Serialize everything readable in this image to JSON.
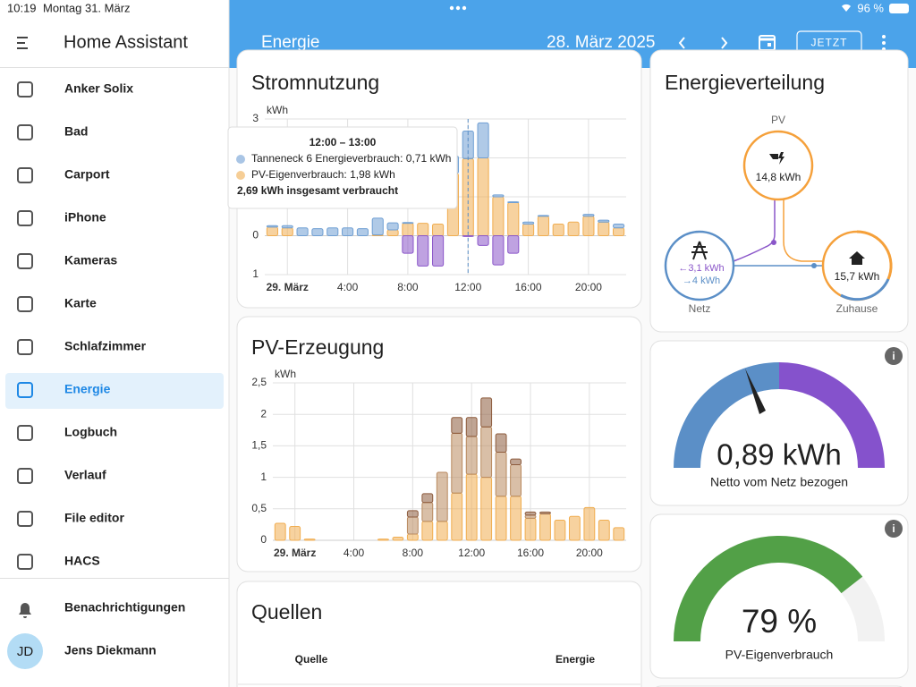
{
  "status_bar": {
    "time": "10:19",
    "date": "Montag 31. März",
    "battery": "96 %"
  },
  "sidebar": {
    "title": "Home Assistant",
    "items": [
      "Anker Solix",
      "Bad",
      "Carport",
      "iPhone",
      "Kameras",
      "Karte",
      "Schlafzimmer",
      "Energie",
      "Logbuch",
      "Verlauf",
      "File editor",
      "HACS"
    ],
    "notifications": "Benachrichtigungen",
    "user_initials": "JD",
    "user_name": "Jens Diekmann"
  },
  "header": {
    "title": "Energie",
    "date": "28. März 2025",
    "button": "JETZT"
  },
  "chart_data": [
    {
      "type": "bar",
      "stacked": true,
      "grid": true,
      "title": "Stromnutzung",
      "ylabel": "kWh",
      "categories": [
        null,
        "29. März",
        null,
        null,
        null,
        "4:00",
        null,
        null,
        null,
        "8:00",
        null,
        null,
        null,
        "12:00",
        null,
        null,
        null,
        "16:00",
        null,
        null,
        null,
        "20:00",
        null,
        null
      ],
      "ylim": [
        -1,
        3
      ],
      "yticks": [
        {
          "value": -1,
          "label": "1"
        },
        0,
        1,
        2,
        3
      ],
      "series": [
        {
          "color": "#f0ad50",
          "values": [
            0.22,
            0.2,
            0,
            0,
            0,
            0,
            0,
            0.02,
            0.15,
            0.32,
            0.32,
            0.3,
            1.6,
            1.98,
            2.0,
            1.0,
            0.85,
            0.3,
            0.5,
            0.3,
            0.35,
            0.5,
            0.35,
            0.2
          ]
        },
        {
          "color": "#6f9fd3",
          "values": [
            0.04,
            0.06,
            0.2,
            0.18,
            0.2,
            0.2,
            0.18,
            0.43,
            0.18,
            0.02,
            0,
            0,
            0.45,
            0.71,
            0.9,
            0.05,
            0.02,
            0.05,
            0.02,
            0,
            0,
            0.05,
            0.05,
            0.1
          ]
        },
        {
          "color": "#8a56c9",
          "values": [
            0,
            0,
            0,
            0,
            0,
            0,
            0,
            0,
            0,
            -0.45,
            -0.78,
            -0.78,
            0,
            -0.02,
            -0.25,
            -0.75,
            -0.45,
            0,
            0,
            0,
            0,
            0,
            0,
            0
          ]
        }
      ],
      "tooltip": {
        "title": "12:00 – 13:00",
        "lines": [
          "Tanneneck 6 Energieverbrauch: 0,71 kWh",
          "PV-Eigenverbrauch: 1,98 kWh"
        ],
        "total": "2,69 kWh insgesamt verbraucht"
      }
    },
    {
      "type": "bar",
      "stacked": true,
      "grid": true,
      "title": "PV-Erzeugung",
      "ylabel": "kWh",
      "categories": [
        null,
        "29. März",
        null,
        null,
        null,
        "4:00",
        null,
        null,
        null,
        "8:00",
        null,
        null,
        null,
        "12:00",
        null,
        null,
        null,
        "16:00",
        null,
        null,
        null,
        "20:00",
        null,
        null
      ],
      "ylim": [
        0,
        2.5
      ],
      "yticks": [
        0,
        {
          "value": 0.5,
          "label": "0,5"
        },
        1,
        {
          "value": 1.5,
          "label": "1,5"
        },
        2,
        {
          "value": 2.5,
          "label": "2,5"
        }
      ],
      "series": [
        {
          "color": "#f0ad50",
          "values": [
            0.27,
            0.22,
            0.02,
            0,
            0,
            0,
            0,
            0.02,
            0.05,
            0.1,
            0.3,
            0.3,
            0.75,
            1.05,
            1.0,
            0.7,
            0.7,
            0.35,
            0.42,
            0.32,
            0.38,
            0.52,
            0.32,
            0.2
          ]
        },
        {
          "color": "#b98a5f",
          "values": [
            0,
            0,
            0,
            0,
            0,
            0,
            0,
            0,
            0,
            0.27,
            0.3,
            0.78,
            0.95,
            0.6,
            0.8,
            0.7,
            0.5,
            0.05,
            0,
            0,
            0,
            0,
            0,
            0
          ]
        },
        {
          "color": "#8d5b3c",
          "values": [
            0,
            0,
            0,
            0,
            0,
            0,
            0,
            0,
            0,
            0.1,
            0.14,
            0,
            0.25,
            0.3,
            0.46,
            0.29,
            0.09,
            0.05,
            0.03,
            0,
            0,
            0,
            0,
            0
          ]
        }
      ]
    }
  ],
  "energy_distribution": {
    "title": "Energieverteilung",
    "pv": {
      "label": "PV",
      "value": "14,8 kWh"
    },
    "grid": {
      "label": "Netz",
      "import": "←3,1 kWh",
      "export": "→4 kWh"
    },
    "home": {
      "label": "Zuhause",
      "value": "15,7 kWh"
    }
  },
  "gauges": [
    {
      "value_label": "0,89 kWh",
      "label": "Netto vom Netz bezogen"
    },
    {
      "value": 79,
      "value_label": "79 %",
      "label": "PV-Eigenverbrauch",
      "range": [
        0,
        100
      ]
    }
  ],
  "sources": {
    "title": "Quellen",
    "columns": [
      "Quelle",
      "Energie"
    ]
  }
}
